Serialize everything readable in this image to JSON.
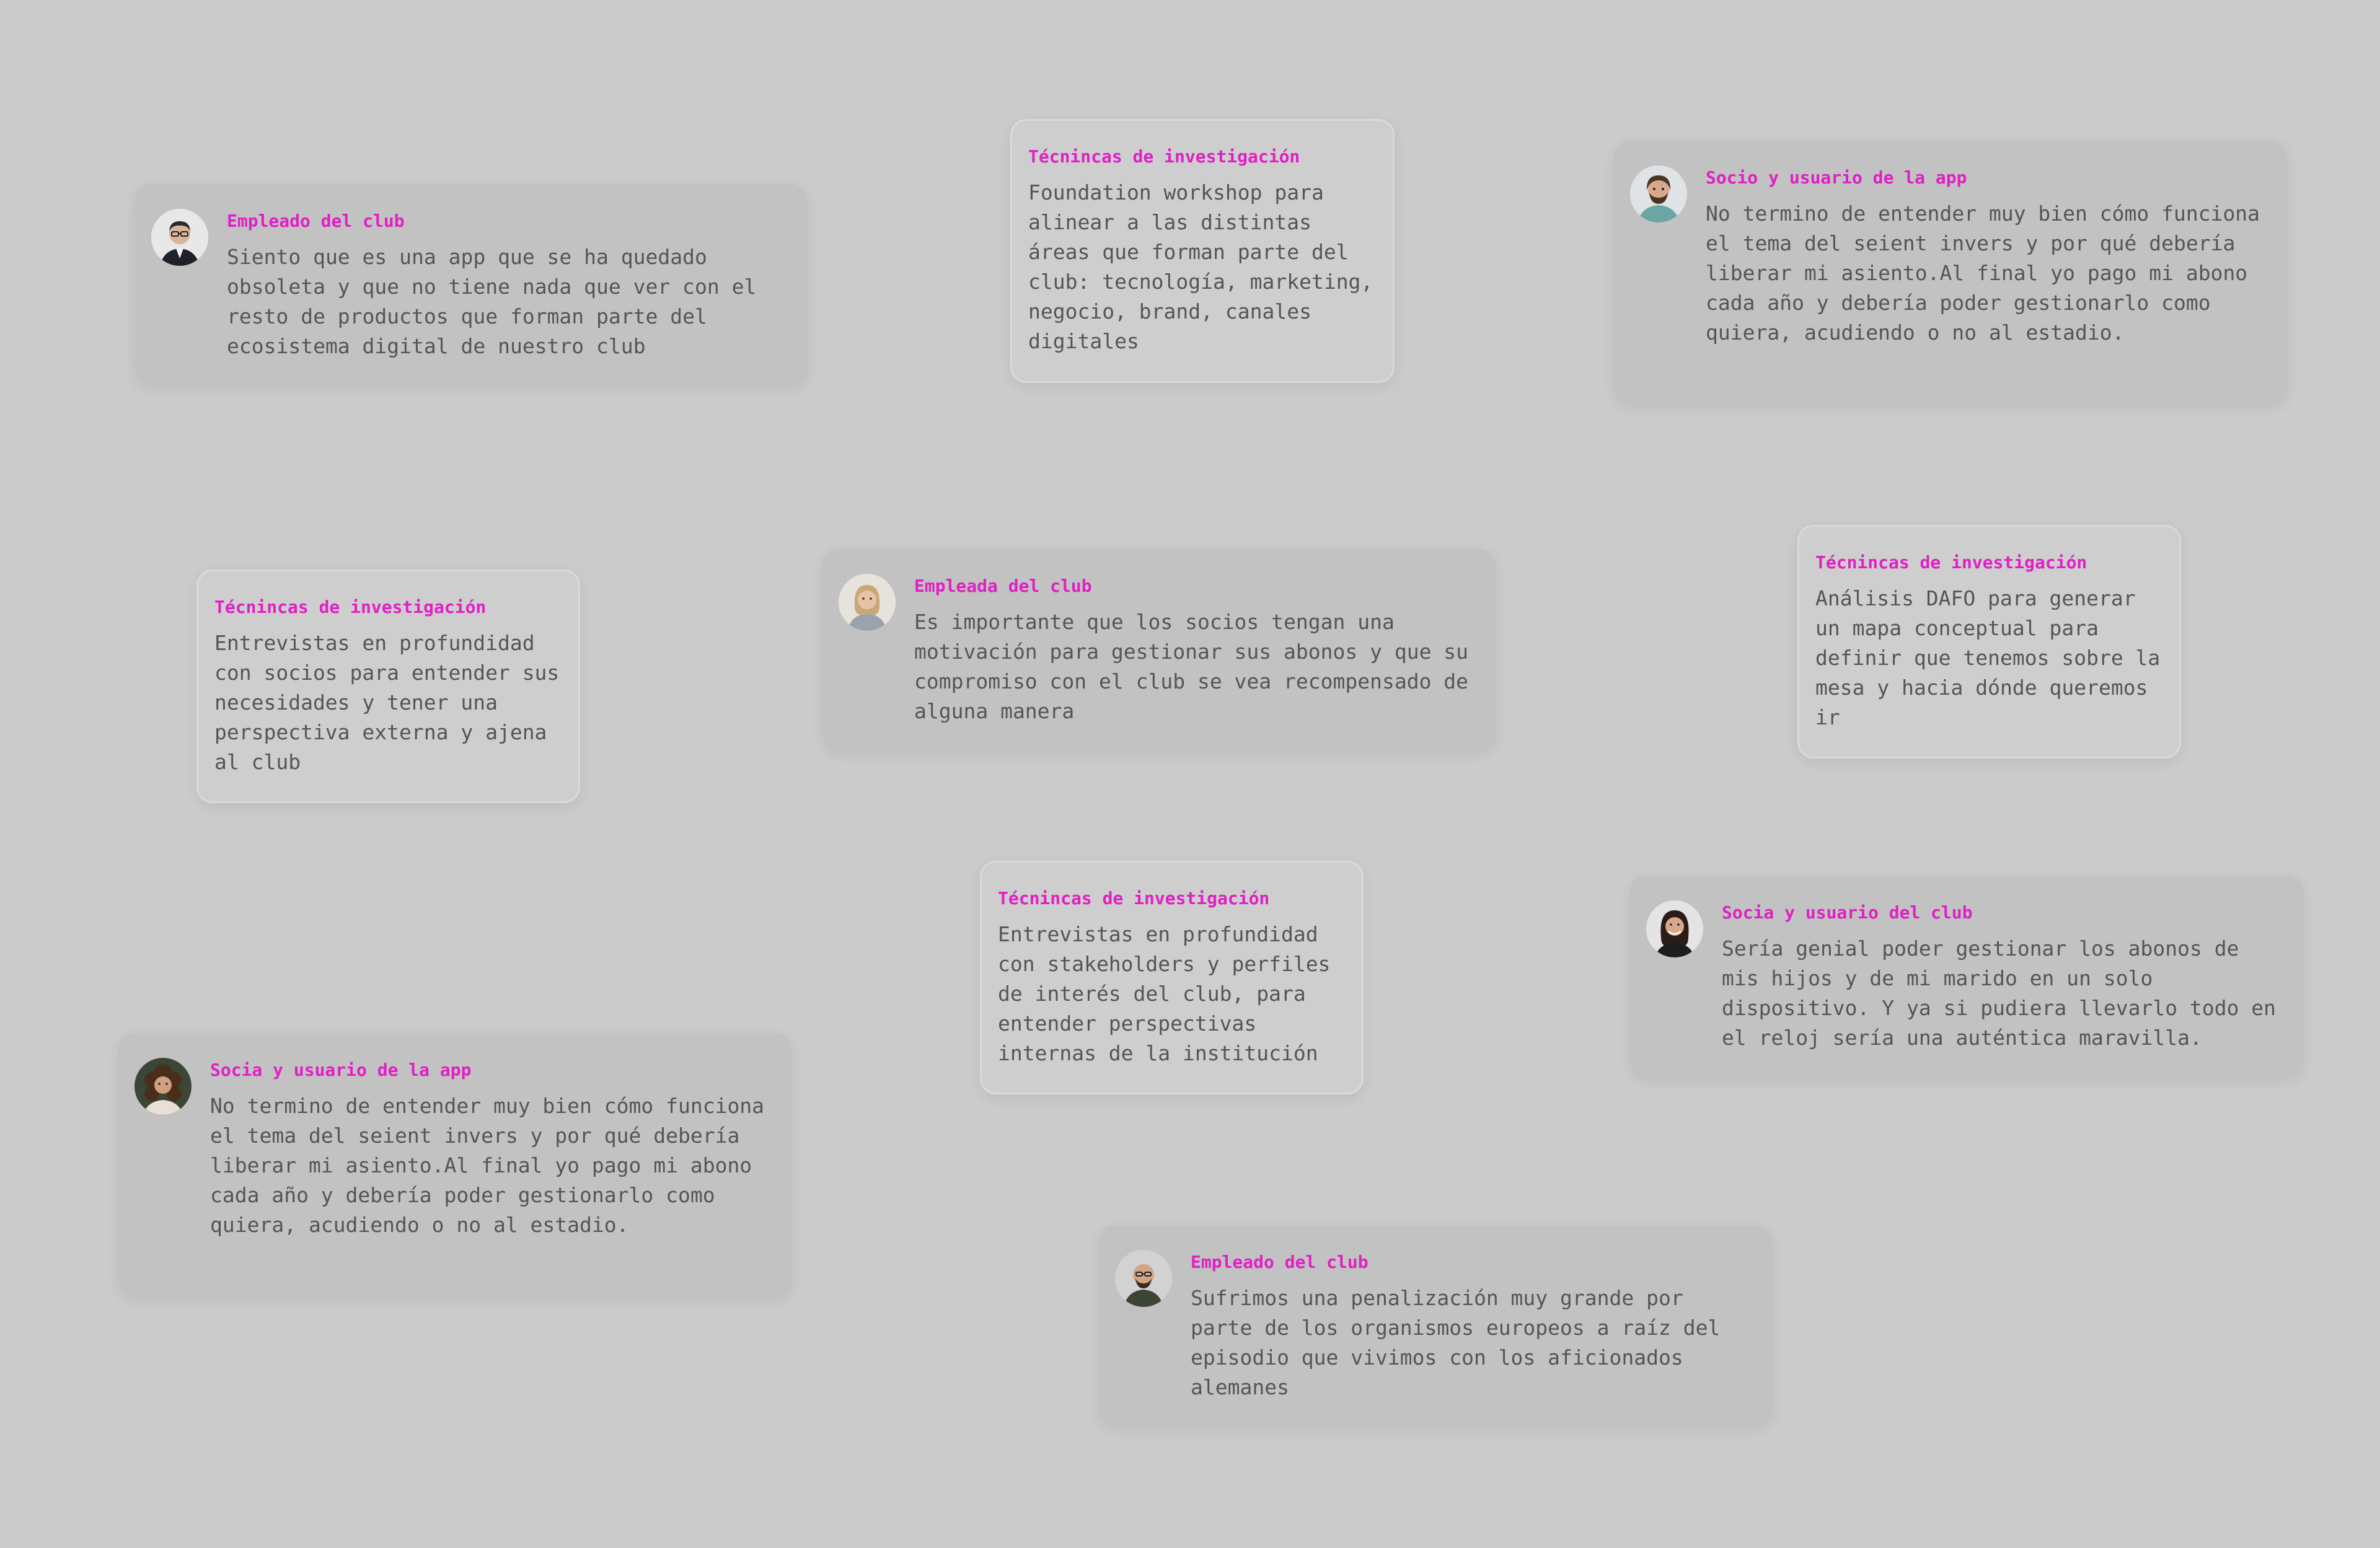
{
  "cards": [
    {
      "title": "Empleado del club",
      "text": "Siento que es una app que se ha quedado obsoleta y que no tiene nada que ver con el resto de productos que forman parte del ecosistema digital de nuestro club",
      "avatar": "man-glasses-avatar"
    },
    {
      "title": "Técnincas de investigación",
      "text": "Foundation workshop para alinear a las distintas áreas que forman parte del club: tecnología, marketing, negocio, brand, canales digitales"
    },
    {
      "title": "Socio y usuario de la app",
      "text": "No termino de entender muy bien cómo funciona el tema del seient invers y por qué debería liberar mi asiento.Al final yo pago mi abono cada año y debería poder gestionarlo como quiera, acudiendo o no al estadio.",
      "avatar": "bearded-man-avatar"
    },
    {
      "title": "Técnincas de investigación",
      "text": "Entrevistas en profundidad con socios para entender sus necesidades y tener una perspectiva externa y ajena al club"
    },
    {
      "title": "Empleada del club",
      "text": "Es importante que los socios tengan una motivación para gestionar sus abonos y que su compromiso con el club se vea recompensado de alguna manera",
      "avatar": "woman-blonde-avatar"
    },
    {
      "title": "Técnincas de investigación",
      "text": "Análisis DAFO para generar un mapa conceptual para definir que tenemos sobre la mesa y hacia dónde queremos ir"
    },
    {
      "title": "Técnincas de investigación",
      "text": "Entrevistas en profundidad con stakeholders y perfiles de interés del club, para entender perspectivas internas de la institución"
    },
    {
      "title": "Socia y usuario del club",
      "text": "Sería genial poder gestionar los abonos de mis hijos y de mi marido en un solo dispositivo. Y ya si pudiera llevarlo todo en el reloj sería una auténtica maravilla.",
      "avatar": "woman-dark-hair-avatar"
    },
    {
      "title": "Socia y usuario de la app",
      "text": "No termino de entender muy bien cómo funciona el tema del seient invers y por qué debería liberar mi asiento.Al final yo pago mi abono cada año y debería poder gestionarlo como quiera, acudiendo o no al estadio.",
      "avatar": "woman-curly-hair-avatar"
    },
    {
      "title": "Empleado del club",
      "text": "Sufrimos una penalización muy grande por parte de los organismos europeos a raíz del episodio que vivimos con los aficionados alemanes",
      "avatar": "bald-man-avatar"
    }
  ],
  "colors": {
    "background": "#cbcbcb",
    "title_accent": "#e020c4",
    "body_text": "#555555"
  }
}
